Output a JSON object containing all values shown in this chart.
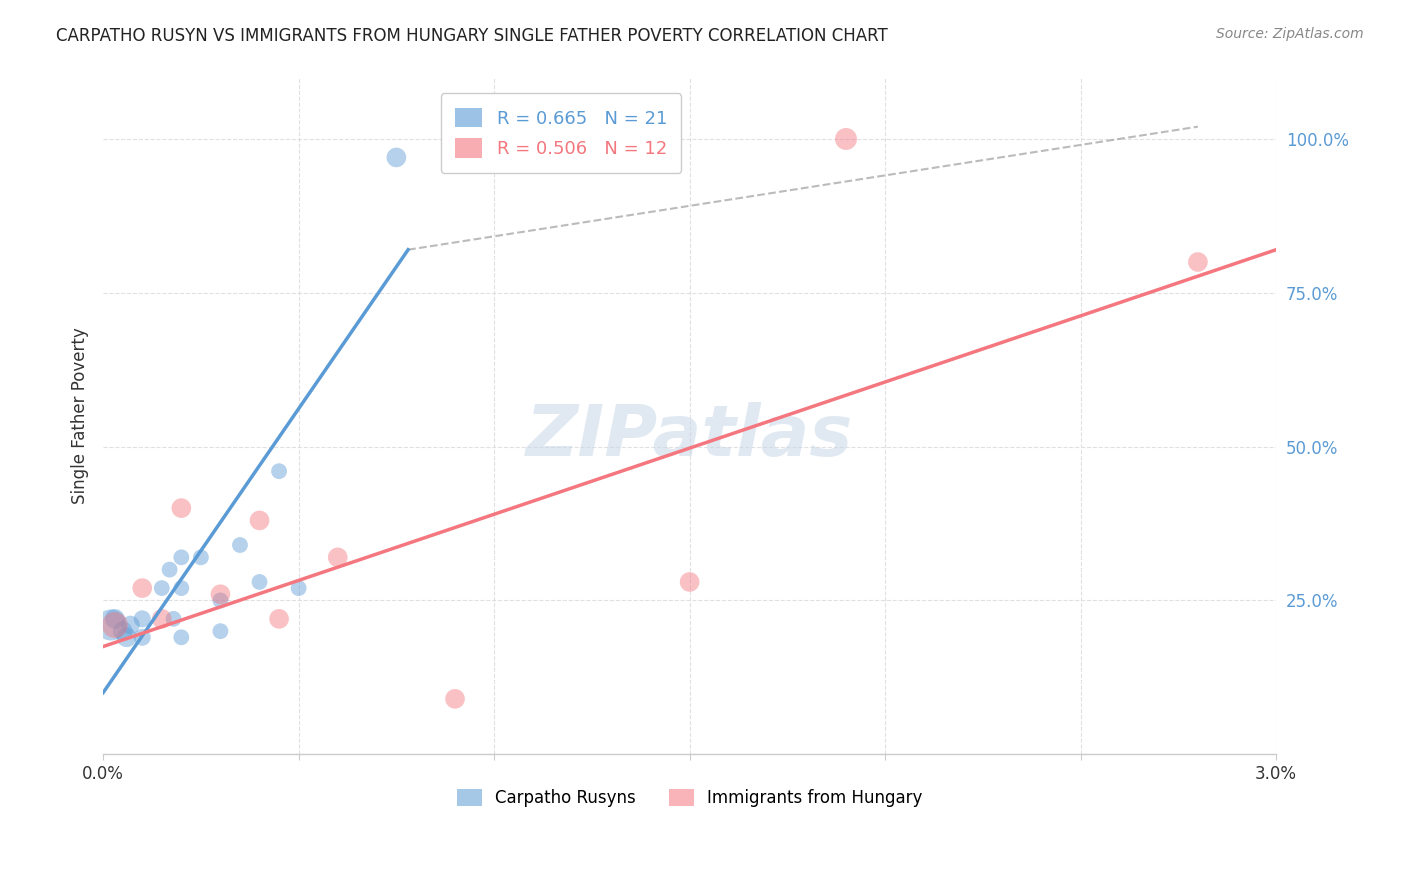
{
  "title": "CARPATHO RUSYN VS IMMIGRANTS FROM HUNGARY SINGLE FATHER POVERTY CORRELATION CHART",
  "source": "Source: ZipAtlas.com",
  "ylabel": "Single Father Poverty",
  "ytick_labels": [
    "",
    "25.0%",
    "50.0%",
    "75.0%",
    "100.0%"
  ],
  "ytick_positions": [
    0.0,
    0.25,
    0.5,
    0.75,
    1.0
  ],
  "xlim": [
    0.0,
    0.03
  ],
  "ylim": [
    0.0,
    1.1
  ],
  "legend_blue_r": "R = 0.665",
  "legend_blue_n": "N = 21",
  "legend_pink_r": "R = 0.506",
  "legend_pink_n": "N = 12",
  "blue_color": "#5b9bd5",
  "pink_color": "#f4777f",
  "blue_label": "Carpatho Rusyns",
  "pink_label": "Immigrants from Hungary",
  "watermark": "ZIPatlas",
  "blue_scatter_x": [
    0.0002,
    0.0003,
    0.0005,
    0.0006,
    0.0007,
    0.001,
    0.001,
    0.0015,
    0.0017,
    0.0018,
    0.002,
    0.002,
    0.002,
    0.0025,
    0.003,
    0.003,
    0.0035,
    0.004,
    0.0045,
    0.005,
    0.0075
  ],
  "blue_scatter_y": [
    0.21,
    0.22,
    0.2,
    0.19,
    0.21,
    0.22,
    0.19,
    0.27,
    0.3,
    0.22,
    0.32,
    0.19,
    0.27,
    0.32,
    0.25,
    0.2,
    0.34,
    0.28,
    0.46,
    0.27,
    0.97
  ],
  "blue_scatter_sizes": [
    500,
    200,
    200,
    200,
    180,
    150,
    150,
    130,
    130,
    130,
    130,
    130,
    130,
    130,
    130,
    130,
    130,
    130,
    130,
    130,
    200
  ],
  "pink_scatter_x": [
    0.0003,
    0.001,
    0.0015,
    0.002,
    0.003,
    0.004,
    0.0045,
    0.006,
    0.009,
    0.015,
    0.019,
    0.028
  ],
  "pink_scatter_y": [
    0.21,
    0.27,
    0.22,
    0.4,
    0.26,
    0.38,
    0.22,
    0.32,
    0.09,
    0.28,
    1.0,
    0.8
  ],
  "pink_scatter_sizes": [
    350,
    200,
    200,
    200,
    200,
    200,
    200,
    200,
    200,
    200,
    250,
    200
  ],
  "blue_trend_x": [
    0.0,
    0.0078
  ],
  "blue_trend_y": [
    0.1,
    0.82
  ],
  "pink_trend_x": [
    0.0,
    0.03
  ],
  "pink_trend_y": [
    0.175,
    0.82
  ],
  "dashed_trend_x": [
    0.0078,
    0.028
  ],
  "dashed_trend_y": [
    0.82,
    1.02
  ],
  "background_color": "#ffffff",
  "grid_color": "#dddddd",
  "xtick_positions": [
    0.0,
    0.005,
    0.01,
    0.015,
    0.02,
    0.025,
    0.03
  ],
  "xtick_labels": [
    "0.0%",
    "",
    "",
    "",
    "",
    "",
    "3.0%"
  ]
}
